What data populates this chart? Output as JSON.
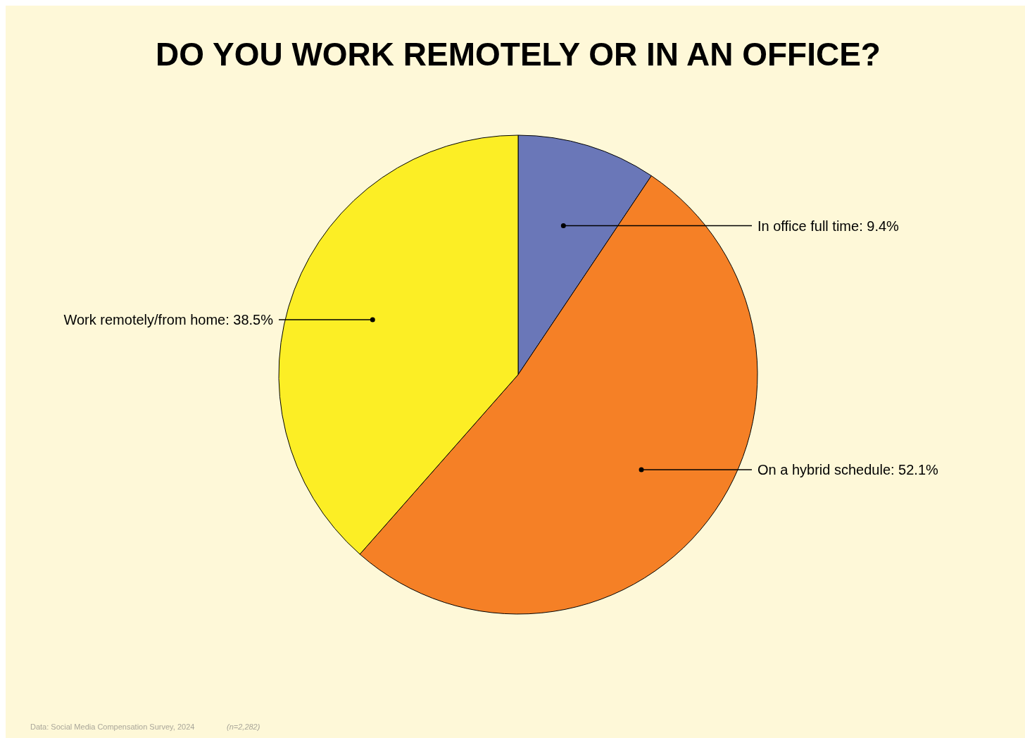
{
  "chart_data": {
    "type": "pie",
    "title": "DO YOU WORK REMOTELY OR IN AN OFFICE?",
    "categories": [
      "In office full time",
      "On a hybrid schedule",
      "Work remotely/from home"
    ],
    "values": [
      9.4,
      52.1,
      38.5
    ],
    "value_labels": [
      "9.4%",
      "52.1%",
      "38.5%"
    ],
    "colors": [
      "#6a77b8",
      "#f58026",
      "#fcee25"
    ],
    "annotations": [
      "Data: Social Media Compensation Survey, 2024",
      "(n=2,282)"
    ]
  }
}
